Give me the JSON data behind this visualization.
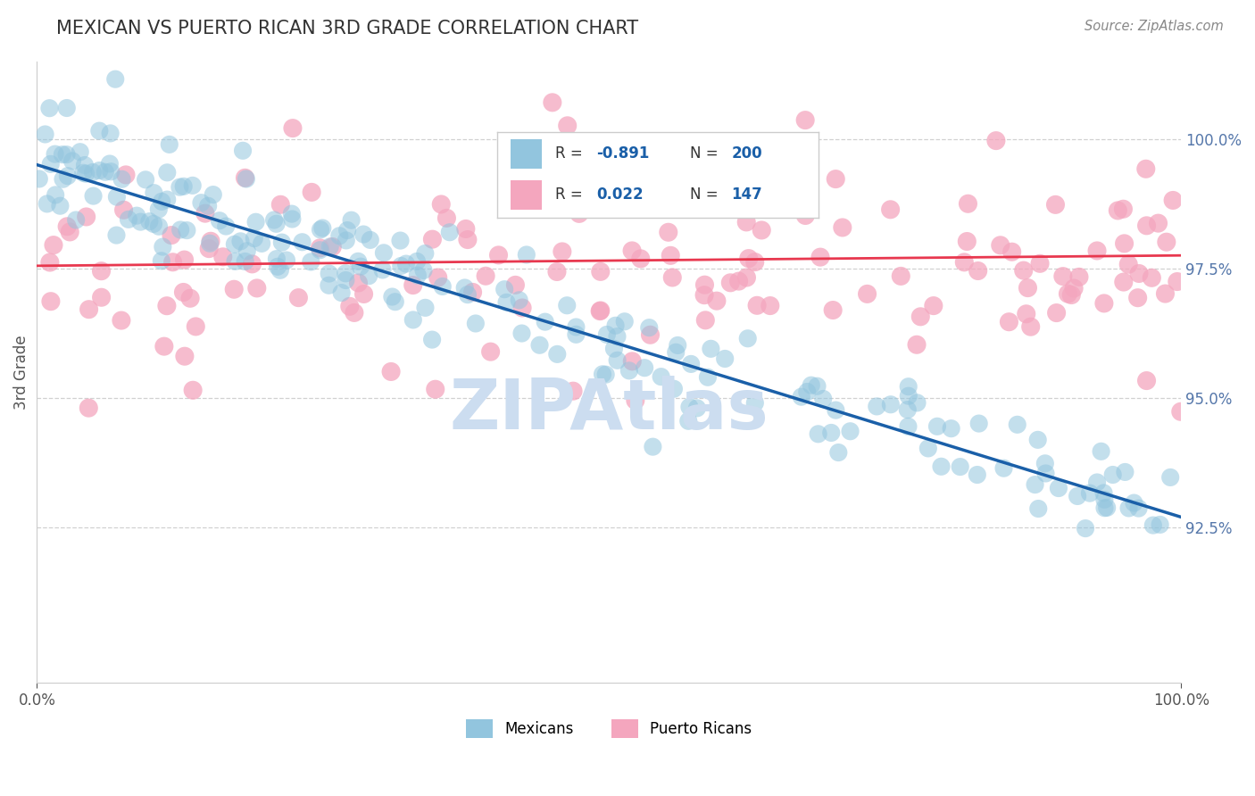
{
  "title": "MEXICAN VS PUERTO RICAN 3RD GRADE CORRELATION CHART",
  "source_text": "Source: ZipAtlas.com",
  "ylabel": "3rd Grade",
  "legend_label_mexicans": "Mexicans",
  "legend_label_puerto_ricans": "Puerto Ricans",
  "r_mexican": -0.891,
  "n_mexican": 200,
  "r_puerto_rican": 0.022,
  "n_puerto_rican": 147,
  "x_min": 0.0,
  "x_max": 100.0,
  "y_min": 89.5,
  "y_max": 101.5,
  "y_ticks": [
    92.5,
    95.0,
    97.5,
    100.0
  ],
  "x_ticks": [
    0.0,
    100.0
  ],
  "blue_color": "#92c5de",
  "pink_color": "#f4a6be",
  "trend_blue": "#1a5fa8",
  "trend_pink": "#e8384f",
  "watermark_text": "ZIPAtlas",
  "watermark_color": "#ccddf0",
  "background_color": "#ffffff",
  "grid_color": "#cccccc",
  "title_color": "#333333",
  "legend_r_color": "#1a5fa8",
  "legend_n_color": "#1a5fa8",
  "intercept_mex": 99.5,
  "slope_mex": -0.068,
  "noise_mex": 0.55,
  "intercept_pr": 97.55,
  "slope_pr": 0.002,
  "noise_pr": 1.1
}
